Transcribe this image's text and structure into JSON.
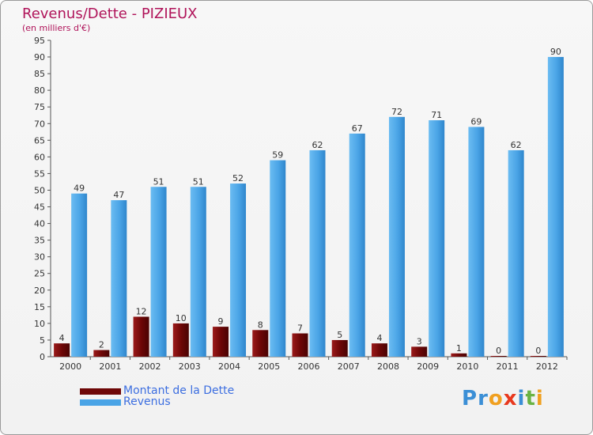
{
  "header": {
    "title": "Revenus/Dette - PIZIEUX",
    "subtitle": "(en milliers d'€)"
  },
  "colors": {
    "dette": "#7a0a0a",
    "revenus": "#4da6e8",
    "title": "#b0145a",
    "legend_text": "#3c6ee0"
  },
  "chart_data": {
    "type": "bar",
    "title": "Revenus/Dette - PIZIEUX",
    "subtitle": "(en milliers d'€)",
    "categories": [
      "2000",
      "2001",
      "2002",
      "2003",
      "2004",
      "2005",
      "2006",
      "2007",
      "2008",
      "2009",
      "2010",
      "2011",
      "2012"
    ],
    "series": [
      {
        "name": "Montant de la Dette",
        "values": [
          4,
          2,
          12,
          10,
          9,
          8,
          7,
          5,
          4,
          3,
          1,
          0,
          0
        ]
      },
      {
        "name": "Revenus",
        "values": [
          49,
          47,
          51,
          51,
          52,
          59,
          62,
          67,
          72,
          71,
          69,
          62,
          90
        ]
      }
    ],
    "yticks": [
      0,
      5,
      10,
      15,
      20,
      25,
      30,
      35,
      40,
      45,
      50,
      55,
      60,
      65,
      70,
      75,
      80,
      85,
      90,
      95
    ],
    "ylim": [
      0,
      95
    ],
    "grid": false,
    "legend_position": "bottom-left"
  },
  "legend": [
    {
      "label": "Montant de la Dette"
    },
    {
      "label": "Revenus"
    }
  ],
  "brand": {
    "letters": [
      "P",
      "r",
      "o",
      "x",
      "i",
      "t",
      "i"
    ],
    "colors": [
      "#3b8fd6",
      "#3b8fd6",
      "#f0a020",
      "#e8391e",
      "#3b8fd6",
      "#6ab344",
      "#f0a020"
    ]
  }
}
